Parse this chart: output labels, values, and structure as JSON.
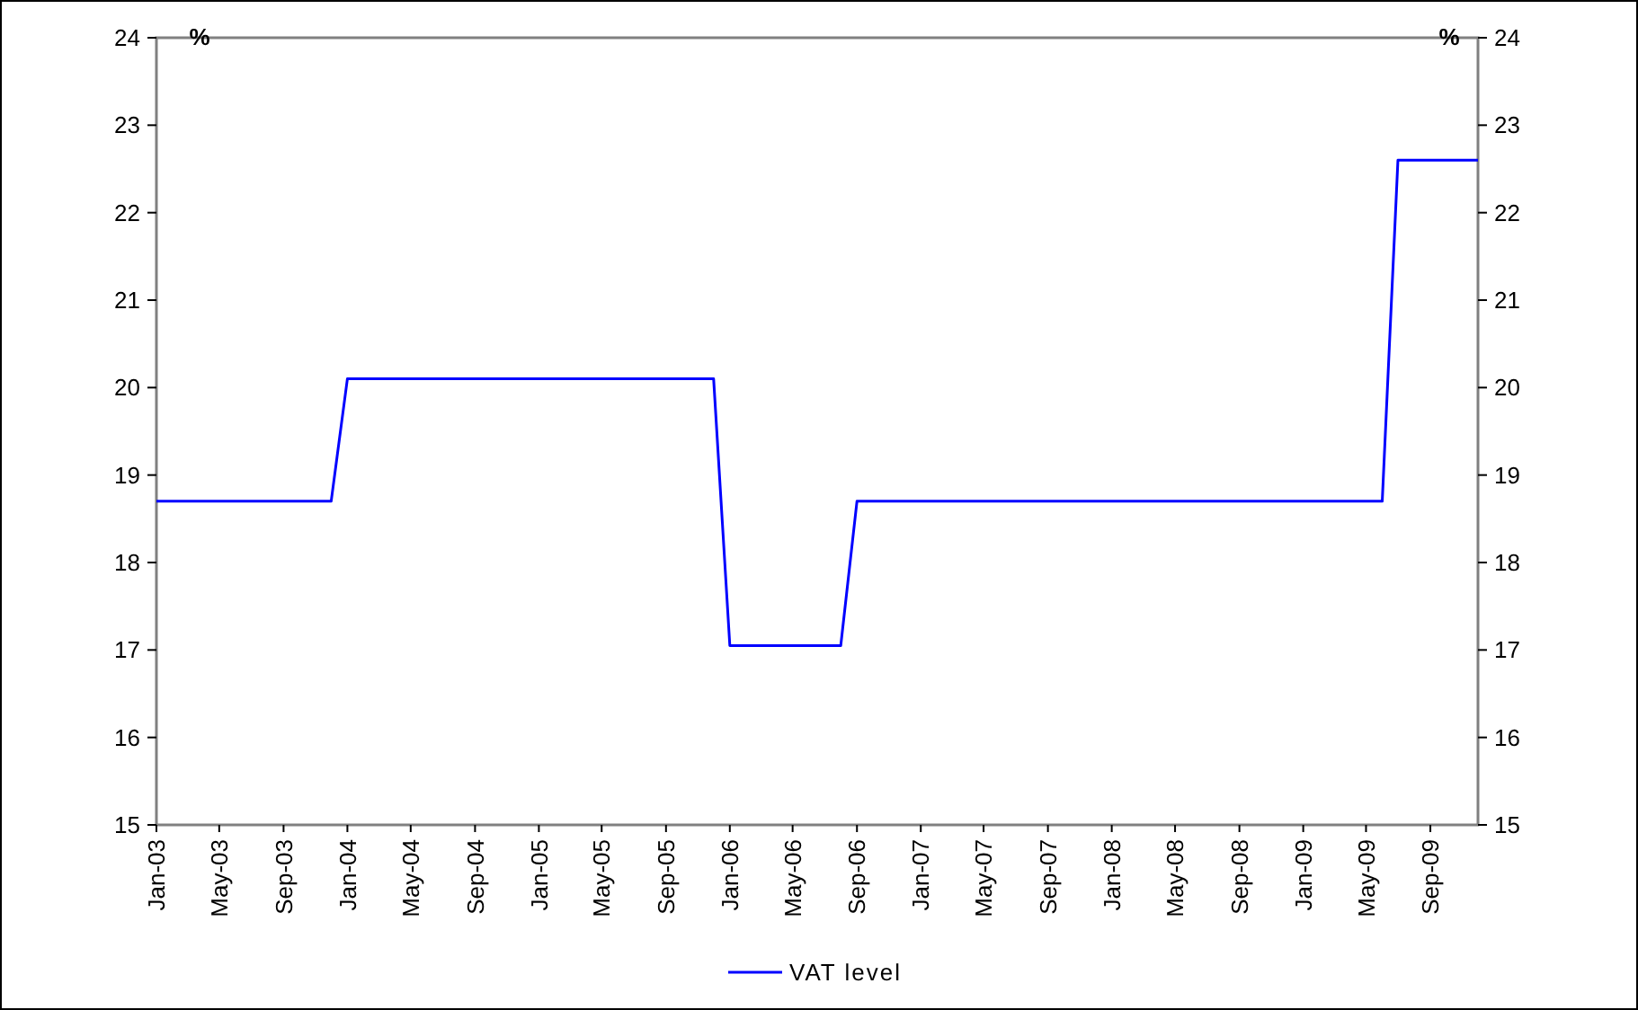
{
  "chart_data": {
    "type": "line",
    "ylabel": "%",
    "y2label": "%",
    "x": [
      "2003-01",
      "2003-12",
      "2004-01",
      "2005-12",
      "2006-01",
      "2006-08",
      "2006-09",
      "2009-06",
      "2009-07",
      "2009-12"
    ],
    "series": [
      {
        "name": "VAT level",
        "color": "#0000ff",
        "values": [
          18.7,
          18.7,
          20.1,
          20.1,
          17.05,
          17.05,
          18.7,
          18.7,
          22.6,
          22.6
        ]
      }
    ],
    "xlim": [
      "2003-01",
      "2009-12"
    ],
    "xticks": [
      {
        "value": "2003-01",
        "label": "Jan-03"
      },
      {
        "value": "2003-05",
        "label": "May-03"
      },
      {
        "value": "2003-09",
        "label": "Sep-03"
      },
      {
        "value": "2004-01",
        "label": "Jan-04"
      },
      {
        "value": "2004-05",
        "label": "May-04"
      },
      {
        "value": "2004-09",
        "label": "Sep-04"
      },
      {
        "value": "2005-01",
        "label": "Jan-05"
      },
      {
        "value": "2005-05",
        "label": "May-05"
      },
      {
        "value": "2005-09",
        "label": "Sep-05"
      },
      {
        "value": "2006-01",
        "label": "Jan-06"
      },
      {
        "value": "2006-05",
        "label": "May-06"
      },
      {
        "value": "2006-09",
        "label": "Sep-06"
      },
      {
        "value": "2007-01",
        "label": "Jan-07"
      },
      {
        "value": "2007-05",
        "label": "May-07"
      },
      {
        "value": "2007-09",
        "label": "Sep-07"
      },
      {
        "value": "2008-01",
        "label": "Jan-08"
      },
      {
        "value": "2008-05",
        "label": "May-08"
      },
      {
        "value": "2008-09",
        "label": "Sep-08"
      },
      {
        "value": "2009-01",
        "label": "Jan-09"
      },
      {
        "value": "2009-05",
        "label": "May-09"
      },
      {
        "value": "2009-09",
        "label": "Sep-09"
      }
    ],
    "ylim": [
      15,
      24
    ],
    "yticks": [
      15,
      16,
      17,
      18,
      19,
      20,
      21,
      22,
      23,
      24
    ],
    "y2lim": [
      15,
      24
    ],
    "y2ticks": [
      15,
      16,
      17,
      18,
      19,
      20,
      21,
      22,
      23,
      24
    ],
    "grid": false,
    "legend": "bottom",
    "marker": "none",
    "line_style": "solid"
  }
}
